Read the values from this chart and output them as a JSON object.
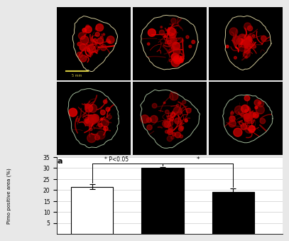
{
  "bar_values": [
    21.5,
    30.0,
    19.0
  ],
  "bar_errors": [
    1.2,
    0.5,
    1.8
  ],
  "bar_colors": [
    "white",
    "black",
    "black"
  ],
  "bar_edgecolors": [
    "black",
    "black",
    "black"
  ],
  "ylabel": "Pimo positive area (%)",
  "ylim": [
    0,
    35
  ],
  "yticks": [
    5,
    10,
    15,
    20,
    25,
    30,
    35
  ],
  "significance_text": "* P<0.05",
  "sig_star": "*",
  "panel_label": "a",
  "figure_bg": "#e8e8e8",
  "grid_color": "#cccccc",
  "image_panel_bg": "#000000",
  "outline_color_top": "#d0c898",
  "outline_color_bottom": "#a0b898",
  "scalebar_color": "#d4c840",
  "scalebar_text": "5 mm",
  "image_rows": 2,
  "image_cols": 3
}
